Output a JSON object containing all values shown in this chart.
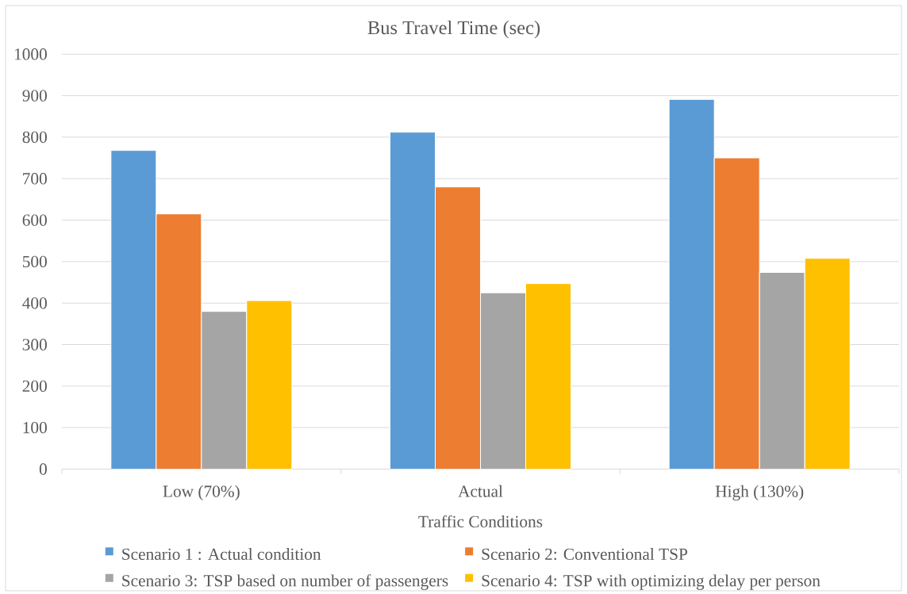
{
  "chart_data": {
    "type": "bar",
    "title": "Bus Travel Time (sec)",
    "xlabel": "Traffic Conditions",
    "categories": [
      "Low (70%)",
      "Actual",
      "High (130%)"
    ],
    "series": [
      {
        "name": "Scenario 1 : Actual condition",
        "color": "#5b9bd5",
        "values": [
          768,
          812,
          891
        ]
      },
      {
        "name": "Scenario 2: Conventional TSP",
        "color": "#ed7d31",
        "values": [
          615,
          680,
          750
        ]
      },
      {
        "name": "Scenario 3: TSP based on number of passengers",
        "color": "#a5a5a5",
        "values": [
          380,
          425,
          474
        ]
      },
      {
        "name": "Scenario 4: TSP with optimizing delay per person",
        "color": "#ffc000",
        "values": [
          406,
          447,
          508
        ]
      }
    ],
    "ylim": [
      0,
      1000
    ],
    "yticks": [
      0,
      100,
      200,
      300,
      400,
      500,
      600,
      700,
      800,
      900,
      1000
    ],
    "grid": "y",
    "legend": "bottom"
  }
}
